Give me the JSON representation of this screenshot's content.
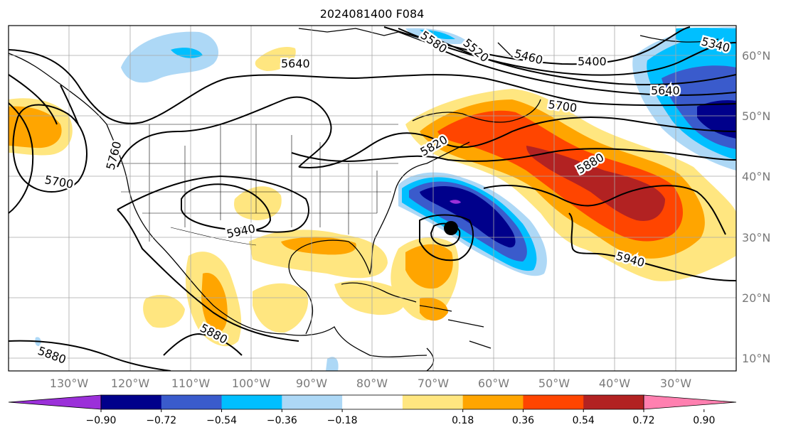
{
  "title": "2024081400 F084",
  "longitude_labels": [
    "130°W",
    "120°W",
    "110°W",
    "100°W",
    "90°W",
    "80°W",
    "70°W",
    "60°W",
    "50°W",
    "40°W",
    "30°W"
  ],
  "latitude_labels": [
    "60°N",
    "50°N",
    "40°N",
    "30°N",
    "20°N",
    "10°N"
  ],
  "contour_labels": [
    "5340",
    "5400",
    "5460",
    "5520",
    "5580",
    "5640",
    "5640",
    "5700",
    "5700",
    "5760",
    "5820",
    "5880",
    "5880",
    "5880",
    "5940",
    "5940"
  ],
  "colorbar": {
    "ticks": [
      "−0.90",
      "−0.72",
      "−0.54",
      "−0.36",
      "−0.18",
      "0.18",
      "0.36",
      "0.54",
      "0.72",
      "0.90"
    ],
    "colors": [
      "#9b30d9",
      "#00008b",
      "#3a5bcc",
      "#00bfff",
      "#add8f6",
      "#ffffff",
      "#ffe680",
      "#ffa500",
      "#ff4500",
      "#b22222",
      "#ff80b0"
    ]
  },
  "storm_marker": "black-dot"
}
